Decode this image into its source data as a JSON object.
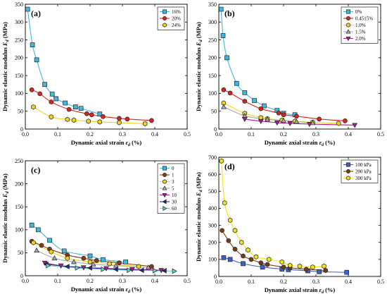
{
  "chart_data": [
    {
      "panel_label": "(a)",
      "type": "scatter",
      "xlabel": "Dynamic axial strain εd (%)",
      "ylabel": "Dynamic elastic modulus Ed (MPa)",
      "xlim": [
        0,
        0.5
      ],
      "ylim": [
        0,
        350
      ],
      "xticks": [
        "0.0",
        "0.1",
        "0.2",
        "0.3",
        "0.4",
        "0.5"
      ],
      "yticks": [
        "0",
        "50",
        "100",
        "150",
        "200",
        "250",
        "300",
        "350"
      ],
      "legend_position": "top-right",
      "series": [
        {
          "name": "16%",
          "color": "#3fb8e0",
          "marker": "square",
          "x": [
            0.007,
            0.022,
            0.035,
            0.06,
            0.083,
            0.095,
            0.123,
            0.155,
            0.172,
            0.23
          ],
          "y": [
            336,
            236,
            194,
            125,
            98,
            85,
            73,
            62,
            58,
            42
          ]
        },
        {
          "name": "20%",
          "color": "#d9231b",
          "marker": "circle",
          "x": [
            0.02,
            0.045,
            0.08,
            0.135,
            0.19,
            0.205,
            0.24,
            0.29,
            0.315,
            0.39
          ],
          "y": [
            110,
            99,
            76,
            55,
            43,
            40,
            35,
            30,
            28,
            24
          ]
        },
        {
          "name": "24%",
          "color": "#f4d21a",
          "marker": "hexagon",
          "x": [
            0.025,
            0.08,
            0.13,
            0.15,
            0.195,
            0.23,
            0.29,
            0.37
          ],
          "y": [
            62,
            34,
            27,
            25,
            22,
            20,
            18,
            15
          ]
        }
      ]
    },
    {
      "panel_label": "(b)",
      "type": "scatter",
      "xlabel": "Dynamic axial strain εd (%)",
      "ylabel": "Dynamic elastic modulus Ed (MPa)",
      "xlim": [
        0,
        0.5
      ],
      "ylim": [
        0,
        350
      ],
      "xticks": [
        "0.0",
        "0.1",
        "0.2",
        "0.3",
        "0.4",
        "0.5"
      ],
      "yticks": [
        "0",
        "50",
        "100",
        "150",
        "200",
        "250",
        "300",
        "350"
      ],
      "legend_position": "top-right",
      "series": [
        {
          "name": "0%",
          "color": "#3fb8e0",
          "marker": "square",
          "x": [
            0.007,
            0.013,
            0.025,
            0.055,
            0.08,
            0.11,
            0.14,
            0.18,
            0.2,
            0.235
          ],
          "y": [
            336,
            262,
            200,
            128,
            102,
            80,
            65,
            52,
            44,
            40
          ]
        },
        {
          "name": "0.4515%",
          "color": "#d9231b",
          "marker": "circle",
          "x": [
            0.015,
            0.035,
            0.08,
            0.13,
            0.185,
            0.2,
            0.24,
            0.31,
            0.39
          ],
          "y": [
            110,
            101,
            78,
            57,
            45,
            40,
            36,
            28,
            23
          ]
        },
        {
          "name": "1.0%",
          "color": "#f4d21a",
          "marker": "hexagon",
          "x": [
            0.015,
            0.08,
            0.13,
            0.15,
            0.195,
            0.235,
            0.29,
            0.37
          ],
          "y": [
            73,
            44,
            32,
            29,
            25,
            22,
            19,
            16
          ]
        },
        {
          "name": "1.5%",
          "color": "#a9a9a9",
          "marker": "triangle-up",
          "x": [
            0.015,
            0.08,
            0.15,
            0.2,
            0.24,
            0.29
          ],
          "y": [
            62,
            37,
            27,
            24,
            21,
            17
          ]
        },
        {
          "name": "2.0%",
          "color": "#b0189c",
          "marker": "triangle-down",
          "x": [
            0.08,
            0.13,
            0.18,
            0.22,
            0.28,
            0.42
          ],
          "y": [
            28,
            22,
            18,
            16,
            14,
            11
          ]
        }
      ]
    },
    {
      "panel_label": "(c)",
      "type": "scatter",
      "xlabel": "Dynamic axial strain εd (%)",
      "ylabel": "Dynamic elastic modulus Ed (MPa)",
      "xlim": [
        0,
        0.5
      ],
      "ylim": [
        0,
        250
      ],
      "xticks": [
        "0.0",
        "0.1",
        "0.2",
        "0.3",
        "0.4",
        "0.5"
      ],
      "yticks": [
        "0",
        "50",
        "100",
        "150",
        "200",
        "250"
      ],
      "legend_position": "top-right",
      "series": [
        {
          "name": "0",
          "color": "#3fb8e0",
          "marker": "square",
          "x": [
            0.02,
            0.04,
            0.075,
            0.12,
            0.2,
            0.24,
            0.31
          ],
          "y": [
            110,
            100,
            77,
            54,
            43,
            35,
            30
          ]
        },
        {
          "name": "1",
          "color": "#8b3a0f",
          "marker": "circle",
          "x": [
            0.02,
            0.05,
            0.075,
            0.13,
            0.18,
            0.22,
            0.29,
            0.39
          ],
          "y": [
            75,
            66,
            58,
            45,
            38,
            33,
            28,
            20
          ]
        },
        {
          "name": "3",
          "color": "#f4d21a",
          "marker": "hexagon",
          "x": [
            0.025,
            0.08,
            0.13,
            0.2,
            0.26,
            0.35
          ],
          "y": [
            72,
            52,
            38,
            30,
            26,
            20
          ]
        },
        {
          "name": "5",
          "color": "#a9a9a9",
          "marker": "triangle-up",
          "x": [
            0.035,
            0.09,
            0.15,
            0.21,
            0.28,
            0.38
          ],
          "y": [
            55,
            38,
            30,
            25,
            22,
            18
          ]
        },
        {
          "name": "10",
          "color": "#b0189c",
          "marker": "triangle-down",
          "x": [
            0.06,
            0.11,
            0.18,
            0.25,
            0.33,
            0.42
          ],
          "y": [
            28,
            22,
            18,
            16,
            14,
            12
          ]
        },
        {
          "name": "30",
          "color": "#1a2a8a",
          "marker": "triangle-left",
          "x": [
            0.065,
            0.13,
            0.2,
            0.28,
            0.36,
            0.43
          ],
          "y": [
            25,
            20,
            17,
            14,
            12,
            11
          ]
        },
        {
          "name": "60",
          "color": "#5cd6c0",
          "marker": "triangle-right",
          "x": [
            0.07,
            0.16,
            0.24,
            0.32,
            0.4,
            0.46
          ],
          "y": [
            22,
            17,
            14,
            12,
            11,
            10
          ]
        }
      ]
    },
    {
      "panel_label": "(d)",
      "type": "scatter",
      "xlabel": "Dynamic axial strain εd (%)",
      "ylabel": "Dynamic elastic modulus Ed (MPa)",
      "xlim": [
        0,
        0.5
      ],
      "ylim": [
        0,
        700
      ],
      "xticks": [
        "0.0",
        "0.1",
        "0.2",
        "0.3",
        "0.4",
        "0.5"
      ],
      "yticks": [
        "0",
        "100",
        "200",
        "300",
        "400",
        "500",
        "600",
        "700"
      ],
      "legend_position": "top-right",
      "series": [
        {
          "name": "100 kPa",
          "color": "#3b5fd4",
          "marker": "square",
          "x": [
            0.015,
            0.035,
            0.075,
            0.135,
            0.195,
            0.215,
            0.275,
            0.31,
            0.395
          ],
          "y": [
            110,
            100,
            75,
            55,
            43,
            40,
            33,
            28,
            24
          ]
        },
        {
          "name": "200 kPa",
          "color": "#7a3b10",
          "marker": "circle",
          "x": [
            0.01,
            0.03,
            0.05,
            0.075,
            0.1,
            0.13,
            0.15,
            0.2,
            0.22,
            0.27,
            0.33
          ],
          "y": [
            270,
            210,
            160,
            120,
            100,
            80,
            70,
            55,
            50,
            42,
            35
          ]
        },
        {
          "name": "300 kPa",
          "color": "#f4e21a",
          "marker": "hexagon",
          "x": [
            0.008,
            0.018,
            0.035,
            0.05,
            0.07,
            0.09,
            0.115,
            0.155,
            0.195,
            0.22,
            0.25,
            0.29,
            0.325
          ],
          "y": [
            678,
            432,
            330,
            270,
            200,
            155,
            115,
            100,
            85,
            65,
            60,
            55,
            60
          ]
        }
      ]
    }
  ]
}
